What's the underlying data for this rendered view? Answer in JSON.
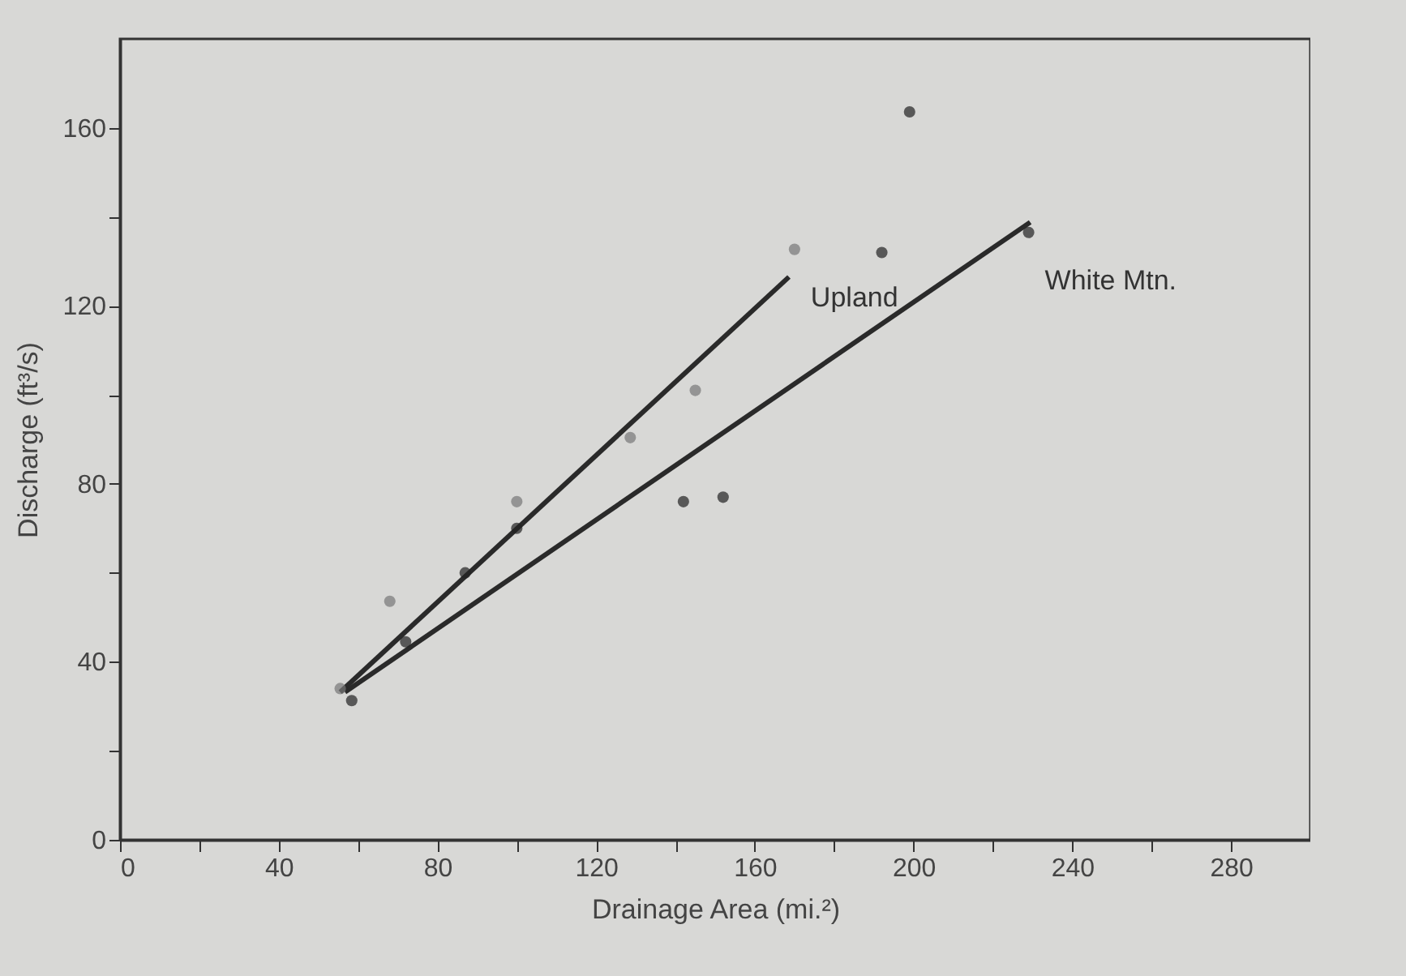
{
  "chart_data": {
    "type": "scatter",
    "xlabel": "Drainage Area (mi.²)",
    "ylabel": "Discharge (ft³/s)",
    "xlim": [
      0,
      300
    ],
    "ylim": [
      0,
      180
    ],
    "xticks": [
      0,
      {
        "value": 20,
        "label": null
      },
      40,
      {
        "value": 60,
        "label": null
      },
      80,
      {
        "value": 100,
        "label": null
      },
      120,
      {
        "value": 140,
        "label": null
      },
      160,
      {
        "value": 180,
        "label": null
      },
      200,
      {
        "value": 220,
        "label": null
      },
      240,
      {
        "value": 260,
        "label": null
      },
      280
    ],
    "yticks": [
      0,
      {
        "value": 20,
        "label": null
      },
      40,
      {
        "value": 60,
        "label": null
      },
      80,
      {
        "value": 100,
        "label": null
      },
      120,
      {
        "value": 140,
        "label": null
      },
      160
    ],
    "series": [
      {
        "name": "Upland",
        "marker": "circle",
        "color": "#777777",
        "x": [
          55.5,
          68,
          100,
          128.6,
          145,
          170
        ],
        "values": [
          34,
          53.6,
          76,
          90.4,
          101,
          132.7
        ]
      },
      {
        "name": "White Mtn.",
        "marker": "circle",
        "color": "#222222",
        "x": [
          58.4,
          72,
          87,
          100,
          142,
          152,
          192,
          199,
          229
        ],
        "values": [
          31.3,
          44.5,
          60,
          70,
          76,
          77,
          132,
          163.6,
          136.5
        ]
      },
      {
        "type": "line",
        "marker": "none",
        "color": "#2a2a2a",
        "x": [
          55.5,
          168.6
        ],
        "values": [
          33.2,
          126.5
        ]
      },
      {
        "type": "line",
        "marker": "none",
        "color": "#2a2a2a",
        "x": [
          56.7,
          229.4
        ],
        "values": [
          33.2,
          138.8
        ]
      }
    ]
  }
}
